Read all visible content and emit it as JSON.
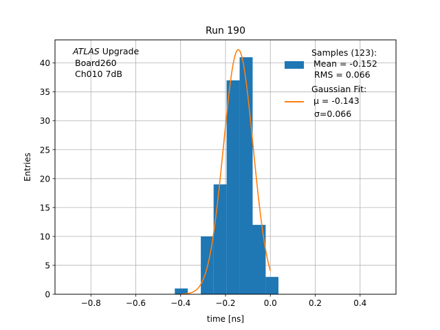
{
  "chart_data": {
    "type": "bar",
    "title": "Run 190",
    "xlabel": "time [ns]",
    "ylabel": "Entries",
    "xlim": [
      -0.96,
      0.56
    ],
    "ylim": [
      0,
      44
    ],
    "grid": true,
    "legend_position": "top-right",
    "annotation": {
      "line1_italic": "ATLAS",
      "line1_rest": " Upgrade",
      "line2": "Board260",
      "line3": "Ch010 7dB"
    },
    "x_ticks": [
      {
        "value": -0.8,
        "label": "−0.8"
      },
      {
        "value": -0.6,
        "label": "−0.6"
      },
      {
        "value": -0.4,
        "label": "−0.4"
      },
      {
        "value": -0.2,
        "label": "−0.2"
      },
      {
        "value": 0.0,
        "label": "0.0"
      },
      {
        "value": 0.2,
        "label": "0.2"
      },
      {
        "value": 0.4,
        "label": "0.4"
      }
    ],
    "y_ticks": [
      {
        "value": 0,
        "label": "0"
      },
      {
        "value": 5,
        "label": "5"
      },
      {
        "value": 10,
        "label": "10"
      },
      {
        "value": 15,
        "label": "15"
      },
      {
        "value": 20,
        "label": "20"
      },
      {
        "value": 25,
        "label": "25"
      },
      {
        "value": 30,
        "label": "30"
      },
      {
        "value": 35,
        "label": "35"
      },
      {
        "value": 40,
        "label": "40"
      }
    ],
    "histogram": {
      "name": "Samples (123):",
      "stats": [
        "Mean = -0.152",
        "RMS = 0.066"
      ],
      "color": "#1f77b4",
      "bins": [
        {
          "x0": -0.426,
          "x1": -0.368,
          "count": 1
        },
        {
          "x0": -0.368,
          "x1": -0.31,
          "count": 0
        },
        {
          "x0": -0.31,
          "x1": -0.253,
          "count": 10
        },
        {
          "x0": -0.253,
          "x1": -0.195,
          "count": 19
        },
        {
          "x0": -0.195,
          "x1": -0.137,
          "count": 37
        },
        {
          "x0": -0.137,
          "x1": -0.079,
          "count": 41
        },
        {
          "x0": -0.079,
          "x1": -0.021,
          "count": 12
        },
        {
          "x0": -0.021,
          "x1": 0.036,
          "count": 3
        }
      ]
    },
    "fit": {
      "name": "Gaussian Fit:",
      "stats": [
        "μ = -0.143",
        "σ=0.066"
      ],
      "color": "#ff7f0e",
      "mu": -0.143,
      "sigma": 0.066,
      "amplitude": 42.3,
      "x_range": [
        -0.4,
        0.0
      ]
    }
  }
}
